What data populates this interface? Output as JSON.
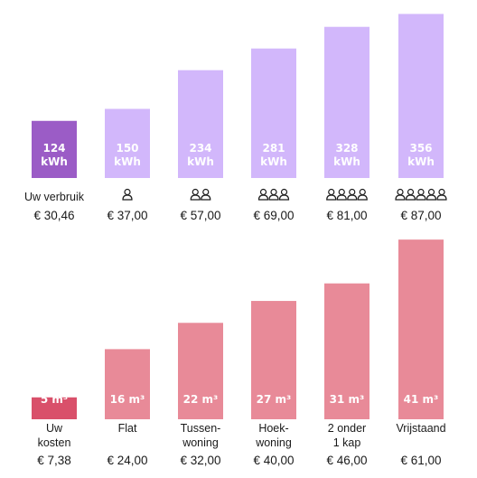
{
  "chart_data": [
    {
      "type": "bar",
      "unit": "kWh",
      "categories": [
        "Uw verbruik",
        "1",
        "2",
        "3",
        "4",
        "5"
      ],
      "values": [
        124,
        150,
        234,
        281,
        328,
        356
      ],
      "value_labels": [
        "124\nkWh",
        "150\nkWh",
        "234\nkWh",
        "281\nkWh",
        "328\nkWh",
        "356\nkWh"
      ],
      "category_labels": [
        "Uw verbruik",
        "",
        "",
        "",
        "",
        ""
      ],
      "person_icons": [
        0,
        1,
        2,
        3,
        4,
        5
      ],
      "prices": [
        "€ 30,46",
        "€ 37,00",
        "€ 57,00",
        "€ 69,00",
        "€ 81,00",
        "€ 87,00"
      ],
      "colors": [
        "#9b5cc6",
        "#d2b7fb",
        "#d2b7fb",
        "#d2b7fb",
        "#d2b7fb",
        "#d2b7fb"
      ],
      "icon_name": "person-icon"
    },
    {
      "type": "bar",
      "unit": "m³",
      "categories": [
        "Uw kosten",
        "Flat",
        "Tussen-woning",
        "Hoek-woning",
        "2 onder 1 kap",
        "Vrijstaand"
      ],
      "values": [
        5,
        16,
        22,
        27,
        31,
        41
      ],
      "value_labels": [
        "5 m³",
        "16 m³",
        "22 m³",
        "27 m³",
        "31 m³",
        "41 m³"
      ],
      "category_labels": [
        "Uw\nkosten",
        "Flat",
        "Tussen-\nwoning",
        "Hoek-\nwoning",
        "2 onder\n1 kap",
        "Vrijstaand"
      ],
      "prices": [
        "€ 7,38",
        "€ 24,00",
        "€ 32,00",
        "€ 40,00",
        "€ 46,00",
        "€ 61,00"
      ],
      "colors": [
        "#d9506a",
        "#e88a98",
        "#e88a98",
        "#e88a98",
        "#e88a98",
        "#e88a98"
      ]
    }
  ]
}
